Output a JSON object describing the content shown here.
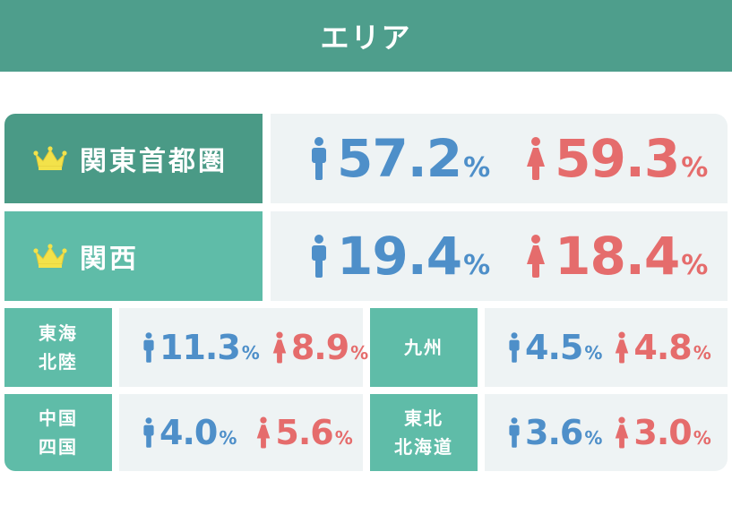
{
  "header": {
    "title": "エリア"
  },
  "colors": {
    "header_bg": "#4e9e8c",
    "label_dark": "#4a9a86",
    "label_light": "#5fbca8",
    "male": "#4e8fc9",
    "female": "#e56c6c",
    "value_bg": "#eef3f4",
    "crown": "#f3e24a"
  },
  "regions": [
    {
      "name": "関東首都圏",
      "icon": "crown-icon",
      "male": "57.2",
      "female": "59.3",
      "unit": "%"
    },
    {
      "name": "関西",
      "icon": "crown-icon",
      "male": "19.4",
      "female": "18.4",
      "unit": "%"
    },
    {
      "name_lines": [
        "東海",
        "北陸"
      ],
      "male": "11.3",
      "female": "8.9",
      "unit": "%"
    },
    {
      "name": "九州",
      "male": "4.5",
      "female": "4.8",
      "unit": "%"
    },
    {
      "name_lines": [
        "中国",
        "四国"
      ],
      "male": "4.0",
      "female": "5.6",
      "unit": "%"
    },
    {
      "name_lines": [
        "東北",
        "北海道"
      ],
      "male": "3.6",
      "female": "3.0",
      "unit": "%"
    }
  ]
}
